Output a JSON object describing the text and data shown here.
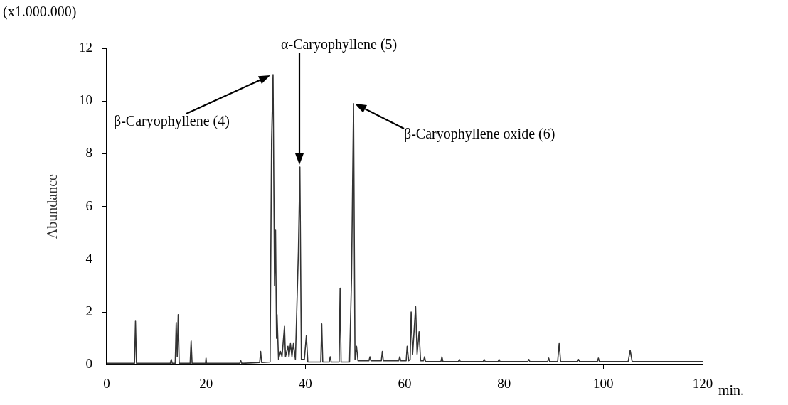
{
  "chart_data": {
    "type": "line",
    "xlabel": "min.",
    "ylabel": "Abundance",
    "xlim": [
      0,
      120
    ],
    "xticks": [
      0,
      20,
      40,
      60,
      80,
      100,
      120
    ],
    "ylim": [
      0,
      12
    ],
    "yticks": [
      0,
      2,
      4,
      6,
      8,
      10,
      12
    ],
    "marker": "none",
    "line_style": "solid",
    "annotations": [
      "(x1.000.000)",
      "β-Caryophyllene (4)",
      "α-Caryophyllene (5)",
      "β-Caryophyllene oxide (6)"
    ],
    "series": [
      {
        "color": "#333333",
        "x": [
          0,
          5.6,
          5.8,
          6.0,
          12.8,
          13,
          13.2,
          13.8,
          14,
          14.2,
          14.4,
          14.6,
          16.8,
          17,
          17.2,
          19.9,
          20,
          20.1,
          26.8,
          27,
          27.2,
          30.8,
          31,
          31.2,
          32.9,
          33.2,
          33.5,
          33.8,
          34,
          34.2,
          34.3,
          34.6,
          35,
          35.3,
          35.8,
          36,
          36.5,
          36.7,
          37,
          37.3,
          37.6,
          38.0,
          38.6,
          38.9,
          39.2,
          39.8,
          40.2,
          40.5,
          43.1,
          43.3,
          43.5,
          44.8,
          45,
          45.2,
          46.8,
          47,
          47.2,
          48.9,
          49.3,
          49.7,
          50.0,
          50.3,
          50.6,
          52.8,
          53,
          53.2,
          55.3,
          55.5,
          55.7,
          58.8,
          59,
          59.2,
          60.3,
          60.5,
          60.8,
          61.1,
          61.3,
          61.6,
          62.2,
          62.5,
          62.9,
          63.2,
          63.8,
          64,
          64.2,
          67.3,
          67.5,
          67.7,
          70.8,
          71,
          71.2,
          75.8,
          76,
          76.2,
          78.8,
          79,
          79.2,
          84.8,
          85,
          85.2,
          88.8,
          89,
          89.2,
          90.8,
          91.1,
          91.4,
          94.8,
          95,
          95.2,
          98.8,
          99,
          99.2,
          105,
          105.4,
          105.8,
          120
        ],
        "values": [
          0.05,
          0.05,
          1.65,
          0.05,
          0.05,
          0.2,
          0.05,
          0.05,
          1.6,
          0.3,
          1.9,
          0.05,
          0.05,
          0.9,
          0.05,
          0.05,
          0.25,
          0.05,
          0.05,
          0.15,
          0.05,
          0.08,
          0.5,
          0.08,
          0.1,
          8.5,
          11,
          3,
          5.1,
          1.0,
          1.9,
          0.2,
          0.5,
          0.3,
          1.45,
          0.3,
          0.7,
          0.3,
          0.8,
          0.3,
          0.8,
          0.2,
          4.3,
          7.5,
          0.2,
          0.2,
          1.1,
          0.1,
          0.1,
          1.55,
          0.1,
          0.1,
          0.3,
          0.1,
          0.1,
          2.9,
          0.1,
          0.1,
          3.3,
          9.9,
          0.2,
          0.7,
          0.15,
          0.15,
          0.3,
          0.15,
          0.15,
          0.5,
          0.15,
          0.15,
          0.3,
          0.15,
          0.15,
          0.7,
          0.15,
          0.2,
          2.0,
          0.4,
          2.2,
          0.4,
          1.25,
          0.15,
          0.15,
          0.3,
          0.12,
          0.12,
          0.3,
          0.12,
          0.12,
          0.2,
          0.12,
          0.12,
          0.2,
          0.12,
          0.12,
          0.2,
          0.12,
          0.12,
          0.2,
          0.12,
          0.12,
          0.25,
          0.12,
          0.12,
          0.8,
          0.12,
          0.12,
          0.2,
          0.12,
          0.12,
          0.25,
          0.12,
          0.12,
          0.55,
          0.12,
          0.12
        ]
      }
    ]
  }
}
